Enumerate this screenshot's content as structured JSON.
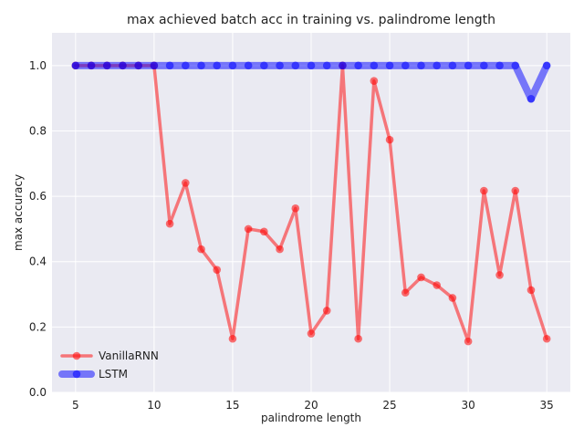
{
  "chart_data": {
    "type": "line",
    "title": "max achieved batch acc in training vs. palindrome length",
    "xlabel": "palindrome length",
    "ylabel": "max accuracy",
    "xlim": [
      3.5,
      36.5
    ],
    "ylim": [
      0.0,
      1.1
    ],
    "xticks": [
      5,
      10,
      15,
      20,
      25,
      30,
      35
    ],
    "yticks": [
      0.0,
      0.2,
      0.4,
      0.6,
      0.8,
      1.0
    ],
    "xtick_labels": [
      "5",
      "10",
      "15",
      "20",
      "25",
      "30",
      "35"
    ],
    "ytick_labels": [
      "0.0",
      "0.2",
      "0.4",
      "0.6",
      "0.8",
      "1.0"
    ],
    "grid": true,
    "legend_position": "lower-left",
    "x": [
      5,
      6,
      7,
      8,
      9,
      10,
      11,
      12,
      13,
      14,
      15,
      16,
      17,
      18,
      19,
      20,
      21,
      22,
      23,
      24,
      25,
      26,
      27,
      28,
      29,
      30,
      31,
      32,
      33,
      34,
      35
    ],
    "series": [
      {
        "name": "VanillaRNN",
        "color": "#ff0000",
        "values": [
          1.0,
          1.0,
          1.0,
          1.0,
          1.0,
          1.0,
          0.516,
          0.641,
          0.438,
          0.375,
          0.164,
          0.5,
          0.492,
          0.438,
          0.563,
          0.18,
          0.25,
          1.0,
          0.164,
          0.953,
          0.773,
          0.305,
          0.352,
          0.328,
          0.289,
          0.156,
          0.617,
          0.359,
          0.617,
          0.313,
          0.164
        ]
      },
      {
        "name": "LSTM",
        "color": "#0000ff",
        "values": [
          1.0,
          1.0,
          1.0,
          1.0,
          1.0,
          1.0,
          1.0,
          1.0,
          1.0,
          1.0,
          1.0,
          1.0,
          1.0,
          1.0,
          1.0,
          1.0,
          1.0,
          1.0,
          1.0,
          1.0,
          1.0,
          1.0,
          1.0,
          1.0,
          1.0,
          1.0,
          1.0,
          1.0,
          1.0,
          0.898,
          1.0
        ]
      }
    ]
  }
}
